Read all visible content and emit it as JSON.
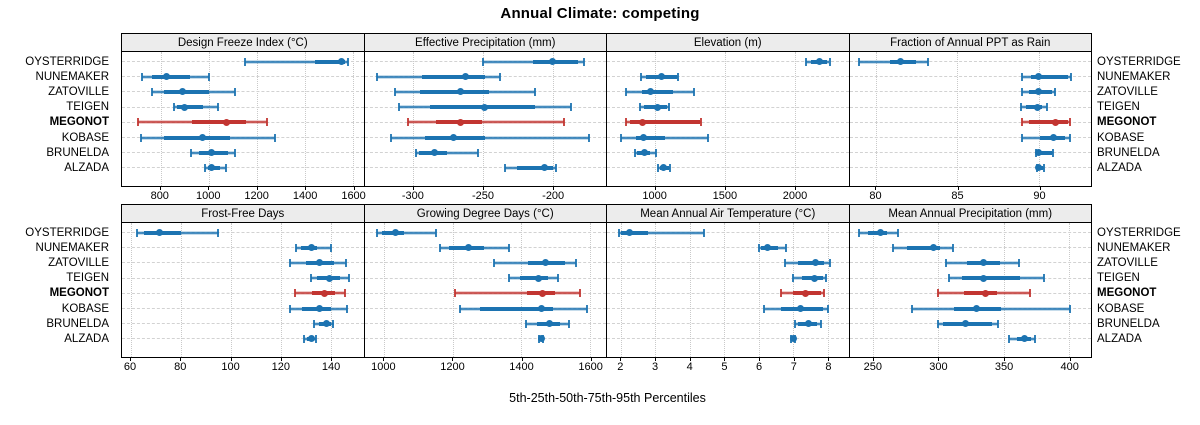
{
  "title": "Annual Climate: competing",
  "caption": "5th-25th-50th-75th-95th Percentiles",
  "sites": [
    "OYSTERRIDGE",
    "NUNEMAKER",
    "ZATOVILLE",
    "TEIGEN",
    "MEGONOT",
    "KOBASE",
    "BRUNELDA",
    "ALZADA"
  ],
  "highlight_site": "MEGONOT",
  "colors": {
    "series": "#1c73b1",
    "highlight": "#c23531",
    "strip_bg": "#ececec",
    "grid": "#d2d2d2",
    "border": "#000000"
  },
  "chart_data": {
    "type": "percentile-dotplot",
    "layout": "2 rows x 4 columns of panels; sites on y-axis, value on x-axis",
    "percentile_levels": [
      5,
      25,
      50,
      75,
      95
    ],
    "legend": "thin line with caps = 5th-95th, thick band = 25th-75th, dot = 50th percentile",
    "panels": [
      {
        "title": "Design Freeze Index (°C)",
        "block": "top",
        "domain": [
          640,
          1642
        ],
        "ticks": [
          800,
          1000,
          1200,
          1400,
          1600
        ],
        "values": {
          "OYSTERRIDGE": [
            1150,
            1440,
            1550,
            1566,
            1577
          ],
          "NUNEMAKER": [
            725,
            765,
            823,
            923,
            1000
          ],
          "ZATOVILLE": [
            765,
            815,
            890,
            1000,
            1110
          ],
          "TEIGEN": [
            855,
            870,
            900,
            978,
            1040
          ],
          "MEGONOT": [
            705,
            930,
            1075,
            1155,
            1240
          ],
          "KOBASE": [
            720,
            815,
            975,
            1090,
            1275
          ],
          "BRUNELDA": [
            925,
            960,
            1010,
            1080,
            1110
          ],
          "ALZADA": [
            985,
            995,
            1010,
            1045,
            1070
          ]
        }
      },
      {
        "title": "Effective Precipitation (mm)",
        "block": "top",
        "domain": [
          -335,
          -162
        ],
        "ticks": [
          -300,
          -250,
          -200
        ],
        "values": {
          "OYSTERRIDGE": [
            -250,
            -214,
            -200,
            -182,
            -178
          ],
          "NUNEMAKER": [
            -326,
            -294,
            -263,
            -249,
            -238
          ],
          "ZATOVILLE": [
            -313,
            -295,
            -266,
            -246,
            -213
          ],
          "TEIGEN": [
            -310,
            -288,
            -249,
            -213,
            -187
          ],
          "MEGONOT": [
            -304,
            -284,
            -266,
            -251,
            -192
          ],
          "KOBASE": [
            -316,
            -292,
            -271,
            -249,
            -174
          ],
          "BRUNELDA": [
            -298,
            -296,
            -285,
            -276,
            -254
          ],
          "ALZADA": [
            -234,
            -226,
            -206,
            -200,
            -198
          ]
        }
      },
      {
        "title": "Elevation (m)",
        "block": "top",
        "domain": [
          657,
          2386
        ],
        "ticks": [
          1000,
          1500,
          2000
        ],
        "values": {
          "OYSTERRIDGE": [
            2080,
            2120,
            2180,
            2230,
            2250
          ],
          "NUNEMAKER": [
            902,
            938,
            1045,
            1155,
            1164
          ],
          "ZATOVILLE": [
            793,
            907,
            967,
            1133,
            1279
          ],
          "TEIGEN": [
            895,
            920,
            1019,
            1086,
            1098
          ],
          "MEGONOT": [
            793,
            820,
            914,
            1324,
            1331
          ],
          "KOBASE": [
            757,
            864,
            919,
            1074,
            1383
          ],
          "BRUNELDA": [
            855,
            871,
            926,
            966,
            1007
          ],
          "ALZADA": [
            1019,
            1034,
            1062,
            1098,
            1105
          ]
        }
      },
      {
        "title": "Fraction of Annual PPT as Rain",
        "block": "top",
        "domain": [
          78.4,
          93.2
        ],
        "ticks": [
          80,
          85,
          90
        ],
        "values": {
          "OYSTERRIDGE": [
            79.0,
            80.9,
            81.5,
            82.5,
            83.2
          ],
          "NUNEMAKER": [
            89.0,
            89.5,
            90.0,
            91.8,
            92.0
          ],
          "ZATOVILLE": [
            89.0,
            89.4,
            90.0,
            90.8,
            91.0
          ],
          "TEIGEN": [
            88.9,
            89.2,
            89.9,
            90.2,
            90.5
          ],
          "MEGONOT": [
            89.0,
            89.4,
            91.0,
            91.8,
            91.9
          ],
          "KOBASE": [
            89.0,
            90.1,
            90.9,
            91.6,
            91.9
          ],
          "BRUNELDA": [
            89.8,
            89.9,
            90.0,
            90.8,
            90.9
          ],
          "ALZADA": [
            89.9,
            89.95,
            90.0,
            90.25,
            90.3
          ]
        }
      },
      {
        "title": "Frost-Free Days",
        "block": "bottom",
        "domain": [
          56.4,
          153
        ],
        "ticks": [
          60,
          80,
          100,
          120,
          140
        ],
        "values": {
          "OYSTERRIDGE": [
            62.5,
            65,
            71.5,
            80,
            95
          ],
          "NUNEMAKER": [
            126,
            128,
            132,
            134.5,
            140
          ],
          "ZATOVILLE": [
            123.5,
            130,
            135.5,
            141,
            146
          ],
          "TEIGEN": [
            132,
            134.5,
            139.5,
            143.5,
            147
          ],
          "MEGONOT": [
            125.5,
            132.5,
            137.5,
            141.5,
            145.5
          ],
          "KOBASE": [
            123.5,
            128.5,
            135.5,
            140,
            146.5
          ],
          "BRUNELDA": [
            133,
            135,
            138,
            140,
            141
          ],
          "ALZADA": [
            129,
            130.5,
            132,
            133,
            134
          ]
        }
      },
      {
        "title": "Growing Degree Days (°C)",
        "block": "bottom",
        "domain": [
          943,
          1646
        ],
        "ticks": [
          1000,
          1200,
          1400,
          1600
        ],
        "values": {
          "OYSTERRIDGE": [
            979,
            995,
            1032,
            1058,
            1150
          ],
          "NUNEMAKER": [
            1162,
            1188,
            1246,
            1290,
            1365
          ],
          "ZATOVILLE": [
            1320,
            1420,
            1470,
            1527,
            1560
          ],
          "TEIGEN": [
            1364,
            1396,
            1449,
            1478,
            1505
          ],
          "MEGONOT": [
            1205,
            1415,
            1461,
            1498,
            1570
          ],
          "KOBASE": [
            1222,
            1280,
            1457,
            1493,
            1591
          ],
          "BRUNELDA": [
            1412,
            1444,
            1481,
            1512,
            1539
          ],
          "ALZADA": [
            1452,
            1454,
            1457,
            1460,
            1464
          ]
        }
      },
      {
        "title": "Mean Annual Air Temperature (°C)",
        "block": "bottom",
        "domain": [
          1.6,
          8.6
        ],
        "ticks": [
          2,
          3,
          4,
          5,
          6,
          7,
          8
        ],
        "values": {
          "OYSTERRIDGE": [
            1.95,
            2.0,
            2.25,
            2.8,
            4.4
          ],
          "NUNEMAKER": [
            6.0,
            6.05,
            6.25,
            6.55,
            6.8
          ],
          "ZATOVILLE": [
            6.75,
            7.15,
            7.65,
            7.9,
            8.05
          ],
          "TEIGEN": [
            7.0,
            7.25,
            7.6,
            7.85,
            7.95
          ],
          "MEGONOT": [
            6.65,
            7.0,
            7.35,
            7.8,
            7.9
          ],
          "KOBASE": [
            6.15,
            6.65,
            7.2,
            7.85,
            8.0
          ],
          "BRUNELDA": [
            7.05,
            7.15,
            7.45,
            7.7,
            7.8
          ],
          "ALZADA": [
            6.93,
            6.95,
            7.0,
            7.02,
            7.05
          ]
        }
      },
      {
        "title": "Mean Annual Precipitation (mm)",
        "block": "bottom",
        "domain": [
          232,
          417
        ],
        "ticks": [
          250,
          300,
          350,
          400
        ],
        "values": {
          "OYSTERRIDGE": [
            239,
            246,
            256,
            261,
            269
          ],
          "NUNEMAKER": [
            265,
            276,
            296,
            301,
            311
          ],
          "ZATOVILLE": [
            306,
            322,
            335,
            347,
            362
          ],
          "TEIGEN": [
            308,
            318,
            335,
            363,
            381
          ],
          "MEGONOT": [
            300,
            320,
            336,
            345,
            370
          ],
          "KOBASE": [
            280,
            312,
            329,
            348,
            401
          ],
          "BRUNELDA": [
            300,
            304,
            321,
            341,
            346
          ],
          "ALZADA": [
            354,
            360,
            366,
            371,
            374
          ]
        }
      }
    ]
  }
}
